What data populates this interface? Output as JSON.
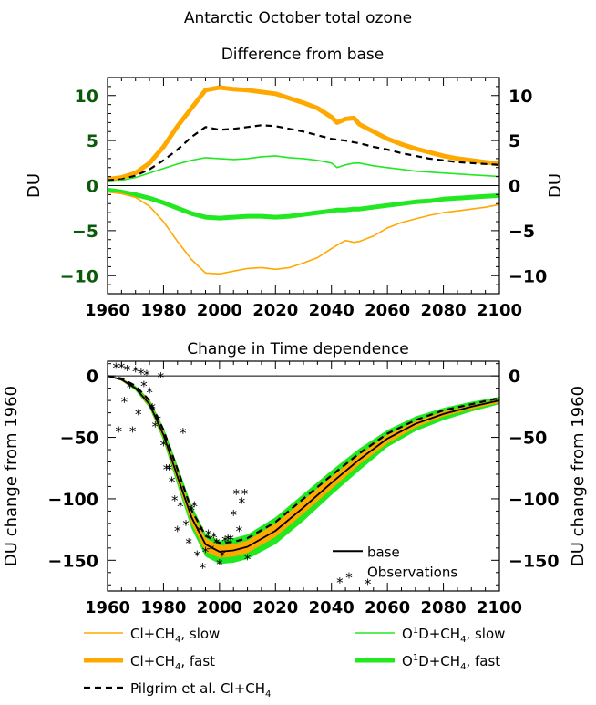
{
  "figure_title": "Antarctic October total ozone",
  "colors": {
    "slow_cl": "#ffa800",
    "fast_cl": "#ffa800",
    "slow_o1d": "#22e822",
    "fast_o1d": "#22e822",
    "pilgrim": "#000000",
    "base": "#000000",
    "top_tick_green": "#0a5a0a"
  },
  "chart_data": [
    {
      "type": "line",
      "title": "Difference from base",
      "ylabel": "DU",
      "ylabel_right": "DU",
      "xlim": [
        1960,
        2100
      ],
      "ylim": [
        -12,
        12
      ],
      "xticks": [
        1960,
        1980,
        2000,
        2020,
        2040,
        2060,
        2080,
        2100
      ],
      "yticks": [
        -10,
        -5,
        0,
        5,
        10
      ],
      "ytick_labels": [
        "−10",
        "−5",
        "0",
        "5",
        "10"
      ],
      "x": [
        1960,
        1965,
        1970,
        1975,
        1980,
        1985,
        1990,
        1995,
        2000,
        2005,
        2010,
        2015,
        2020,
        2025,
        2030,
        2035,
        2040,
        2042,
        2045,
        2048,
        2050,
        2055,
        2060,
        2065,
        2070,
        2075,
        2080,
        2085,
        2090,
        2095,
        2100
      ],
      "series": [
        {
          "name": "Cl+CH4, fast",
          "style": "fast_cl",
          "values": [
            0.7,
            0.9,
            1.4,
            2.5,
            4.3,
            6.6,
            8.6,
            10.6,
            10.9,
            10.7,
            10.6,
            10.4,
            10.2,
            9.7,
            9.2,
            8.6,
            7.6,
            7.0,
            7.4,
            7.5,
            6.8,
            6.0,
            5.2,
            4.6,
            4.1,
            3.7,
            3.3,
            3.0,
            2.8,
            2.6,
            2.4
          ]
        },
        {
          "name": "Pilgrim et al. Cl+CH4",
          "style": "pilgrim",
          "values": [
            0.6,
            0.7,
            1.1,
            1.8,
            2.8,
            4.0,
            5.4,
            6.5,
            6.2,
            6.3,
            6.5,
            6.7,
            6.6,
            6.3,
            6.0,
            5.6,
            5.2,
            5.1,
            5.0,
            4.8,
            4.7,
            4.3,
            4.0,
            3.6,
            3.3,
            3.0,
            2.8,
            2.6,
            2.5,
            2.4,
            2.3
          ]
        },
        {
          "name": "O1D+CH4, slow",
          "style": "slow_o1d",
          "values": [
            0.4,
            0.6,
            0.9,
            1.4,
            1.9,
            2.4,
            2.8,
            3.1,
            3.0,
            2.9,
            3.0,
            3.2,
            3.3,
            3.1,
            3.0,
            2.8,
            2.5,
            2.0,
            2.3,
            2.5,
            2.5,
            2.2,
            2.0,
            1.8,
            1.6,
            1.5,
            1.4,
            1.3,
            1.2,
            1.1,
            1.0
          ]
        },
        {
          "name": "O1D+CH4, fast",
          "style": "fast_o1d",
          "values": [
            -0.5,
            -0.7,
            -1.0,
            -1.4,
            -1.9,
            -2.5,
            -3.1,
            -3.5,
            -3.6,
            -3.5,
            -3.4,
            -3.4,
            -3.5,
            -3.4,
            -3.2,
            -3.0,
            -2.8,
            -2.7,
            -2.7,
            -2.6,
            -2.6,
            -2.4,
            -2.2,
            -2.0,
            -1.8,
            -1.7,
            -1.5,
            -1.4,
            -1.3,
            -1.2,
            -1.1
          ]
        },
        {
          "name": "Cl+CH4, slow",
          "style": "slow_cl",
          "values": [
            -0.7,
            -0.9,
            -1.3,
            -2.3,
            -4.0,
            -6.2,
            -8.2,
            -9.7,
            -9.8,
            -9.5,
            -9.2,
            -9.1,
            -9.3,
            -9.1,
            -8.6,
            -8.0,
            -7.0,
            -6.6,
            -6.1,
            -6.3,
            -6.2,
            -5.6,
            -4.7,
            -4.1,
            -3.7,
            -3.3,
            -3.0,
            -2.8,
            -2.6,
            -2.4,
            -2.1
          ]
        }
      ]
    },
    {
      "type": "line",
      "title": "Change in Time dependence",
      "ylabel": "DU change from 1960",
      "ylabel_right": "DU change from 1960",
      "xlim": [
        1960,
        2100
      ],
      "ylim": [
        -175,
        12
      ],
      "xticks": [
        1960,
        1980,
        2000,
        2020,
        2040,
        2060,
        2080,
        2100
      ],
      "yticks": [
        -150,
        -100,
        -50,
        0
      ],
      "ytick_labels": [
        "−150",
        "−100",
        "−50",
        "0"
      ],
      "x": [
        1960,
        1965,
        1970,
        1975,
        1980,
        1985,
        1990,
        1995,
        2000,
        2005,
        2010,
        2020,
        2030,
        2040,
        2050,
        2060,
        2070,
        2080,
        2090,
        2100
      ],
      "series": [
        {
          "name": "base",
          "style": "base",
          "values": [
            0,
            -3,
            -10,
            -23,
            -48,
            -82,
            -115,
            -137,
            -143,
            -142,
            -139,
            -126,
            -107,
            -87,
            -68,
            -51,
            -39,
            -31,
            -25,
            -20
          ]
        },
        {
          "name": "Pilgrim et al. Cl+CH4",
          "style": "pilgrim",
          "values": [
            0,
            -2,
            -8,
            -20,
            -44,
            -76,
            -109,
            -130,
            -136,
            -135,
            -132,
            -119,
            -100,
            -81,
            -63,
            -47,
            -36,
            -28,
            -23,
            -18
          ]
        }
      ],
      "band_o1d": {
        "upper": [
          0,
          -2,
          -8,
          -19,
          -42,
          -73,
          -105,
          -128,
          -134,
          -132,
          -129,
          -115,
          -96,
          -77,
          -59,
          -44,
          -33,
          -26,
          -21,
          -17
        ],
        "lower": [
          0,
          -4,
          -12,
          -26,
          -53,
          -89,
          -124,
          -147,
          -153,
          -152,
          -149,
          -137,
          -118,
          -97,
          -77,
          -58,
          -45,
          -36,
          -29,
          -23
        ]
      },
      "band_cl": {
        "upper": [
          0,
          -2,
          -9,
          -21,
          -45,
          -78,
          -110,
          -132,
          -138,
          -137,
          -134,
          -120,
          -101,
          -82,
          -64,
          -48,
          -37,
          -29,
          -24,
          -19
        ],
        "lower": [
          0,
          -4,
          -11,
          -25,
          -51,
          -86,
          -120,
          -143,
          -148,
          -147,
          -144,
          -131,
          -112,
          -92,
          -72,
          -55,
          -42,
          -33,
          -27,
          -22
        ]
      },
      "observations": {
        "x": [
          1963,
          1964,
          1965,
          1966,
          1967,
          1968,
          1969,
          1970,
          1971,
          1972,
          1973,
          1974,
          1975,
          1976,
          1977,
          1978,
          1979,
          1980,
          1981,
          1982,
          1983,
          1984,
          1985,
          1986,
          1987,
          1988,
          1989,
          1990,
          1991,
          1992,
          1993,
          1994,
          1995,
          1996,
          1997,
          1998,
          1999,
          2000,
          2001,
          2002,
          2003,
          2004,
          2005,
          2006,
          2007,
          2008,
          2009,
          2010,
          2043,
          2053
        ],
        "y": [
          8,
          -44,
          8,
          -20,
          6,
          -8,
          -44,
          5,
          -30,
          3,
          -7,
          2,
          -12,
          -25,
          -40,
          -35,
          0,
          -55,
          -75,
          -75,
          -85,
          -100,
          -125,
          -105,
          -45,
          -120,
          -135,
          -108,
          -105,
          -145,
          -125,
          -155,
          -142,
          -128,
          -140,
          -130,
          -135,
          -152,
          -145,
          -133,
          -132,
          -132,
          -112,
          -95,
          -125,
          -102,
          -95,
          -148,
          -167,
          -168
        ]
      },
      "legend": [
        "base",
        "Observations"
      ],
      "legend_placement": "bottom-right"
    }
  ],
  "legend_items": [
    {
      "label": "Cl+CH",
      "sub": "4",
      "tail": ", slow"
    },
    {
      "label": "O",
      "sup": "1",
      "mid": "D+CH",
      "sub": "4",
      "tail": ", slow"
    },
    {
      "label": "Cl+CH",
      "sub": "4",
      "tail": ", fast"
    },
    {
      "label": "O",
      "sup": "1",
      "mid": "D+CH",
      "sub": "4",
      "tail": ", fast"
    },
    {
      "label": "Pilgrim et al. Cl+CH",
      "sub": "4",
      "tail": ""
    }
  ]
}
